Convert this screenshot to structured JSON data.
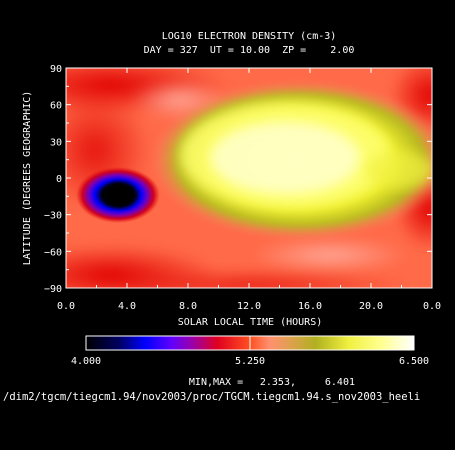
{
  "chart_data": {
    "type": "heatmap",
    "title": "LOG10 ELECTRON DENSITY (cm-3)",
    "subtitle": "DAY = 327  UT = 10.00  ZP =    2.00",
    "xlabel": "SOLAR LOCAL TIME (HOURS)",
    "ylabel": "LATITUDE (DEGREES GEOGRAPHIC)",
    "x_ticks": [
      "0.0",
      "4.0",
      "8.0",
      "12.0",
      "16.0",
      "20.0",
      "0.0"
    ],
    "y_ticks": [
      "90",
      "60",
      "30",
      "0",
      "-30",
      "-60",
      "-90"
    ],
    "xlim": [
      0,
      24
    ],
    "ylim": [
      -90,
      90
    ],
    "colorbar": {
      "min": 4.0,
      "max": 6.5,
      "labels": [
        "4.000",
        "5.250",
        "6.500"
      ],
      "colors": [
        "#000000",
        "#0000ff",
        "#8000c0",
        "#e00020",
        "#ff4020",
        "#ff8060",
        "#c8c020",
        "#f0f040",
        "#ffffa0",
        "#ffffff"
      ]
    },
    "features": [
      {
        "name": "equatorial-daytime-peak",
        "lt": 14.5,
        "lat": 5,
        "value": 6.4
      },
      {
        "name": "predawn-minimum",
        "lt": 3.0,
        "lat": -10,
        "value": 4.1
      }
    ],
    "minmax_label": "MIN,MAX =",
    "min_value": "2.353,",
    "max_value": "6.401"
  },
  "footer": {
    "path": "/dim2/tgcm/tiegcm1.94/nov2003/proc/TGCM.tiegcm1.94.s_nov2003_heeli"
  }
}
